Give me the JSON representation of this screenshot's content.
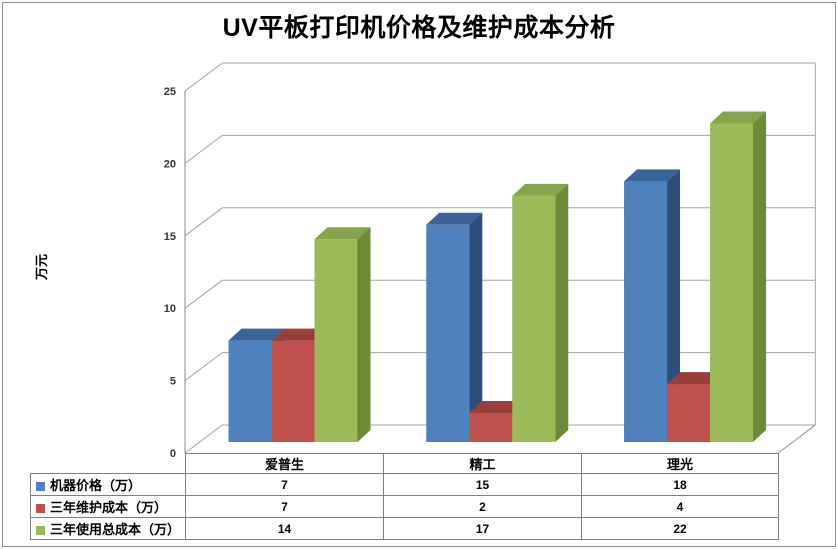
{
  "chart_data": {
    "type": "bar",
    "subtype": "3d-clustered-column",
    "title": "UV平板打印机价格及维护成本分析",
    "ylabel": "万元",
    "ylim": [
      0,
      25
    ],
    "ytick_step": 5,
    "yticks": [
      0,
      5,
      10,
      15,
      20,
      25
    ],
    "grid": true,
    "legend_position": "data-table-left",
    "categories": [
      "爱普生",
      "精工",
      "理光"
    ],
    "series": [
      {
        "name": "机器价格（万）",
        "values": [
          7,
          15,
          18
        ],
        "color": "#4F81BD",
        "top_color": "#3A6397",
        "side_color": "#2E4D78"
      },
      {
        "name": "三年维护成本（万）",
        "values": [
          7,
          2,
          4
        ],
        "color": "#C0504D",
        "top_color": "#9A3E3B",
        "side_color": "#8A3532"
      },
      {
        "name": "三年使用总成本（万）",
        "values": [
          14,
          17,
          22
        ],
        "color": "#9BBB59",
        "top_color": "#85A44C",
        "side_color": "#6D8A3A"
      }
    ],
    "grid_color": "#A3A3A3",
    "axis_color": "#898989"
  }
}
